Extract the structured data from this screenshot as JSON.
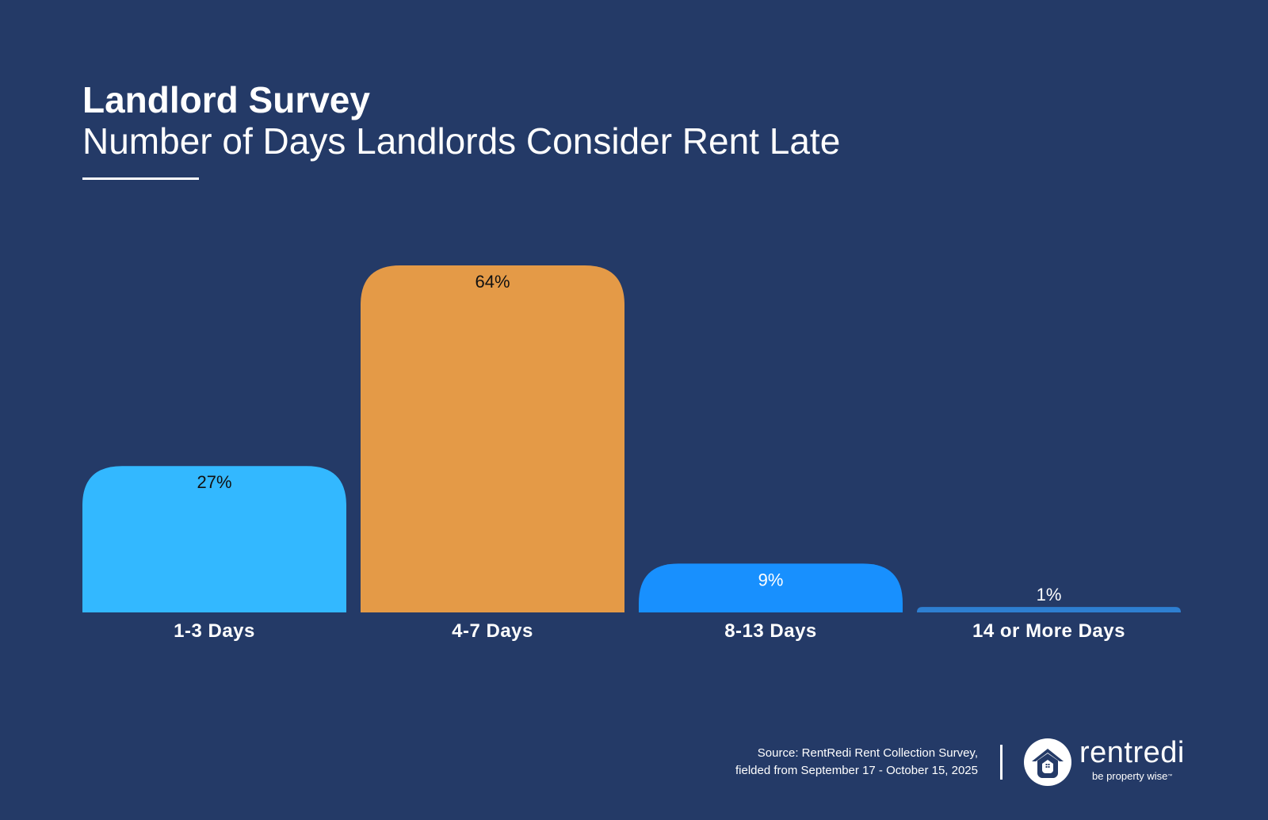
{
  "header": {
    "title": "Landlord Survey",
    "subtitle": "Number of Days Landlords Consider Rent Late"
  },
  "chart_data": {
    "type": "bar",
    "title": "Landlord Survey",
    "subtitle": "Number of Days Landlords Consider Rent Late",
    "categories": [
      "1-3 Days",
      "4-7 Days",
      "8-13 Days",
      "14 or More Days"
    ],
    "values": [
      27,
      64,
      9,
      1
    ],
    "value_labels": [
      "27%",
      "64%",
      "9%",
      "1%"
    ],
    "colors": [
      "#33b8ff",
      "#e49a47",
      "#1890fe",
      "#2e7fd1"
    ],
    "unit": "%",
    "xlabel": "",
    "ylabel": "",
    "ylim": [
      0,
      64
    ],
    "grid": false,
    "legend": "none"
  },
  "footer": {
    "source_line1": "Source: RentRedi Rent Collection Survey,",
    "source_line2": "fielded from September 17 - October 15, 2025"
  },
  "logo": {
    "brand": "rentredi",
    "tagline": "be property wise",
    "trademark": "™",
    "icon": "house-icon"
  },
  "colors": {
    "background": "#243a67",
    "text": "#ffffff",
    "value_label_text": "#111111"
  }
}
